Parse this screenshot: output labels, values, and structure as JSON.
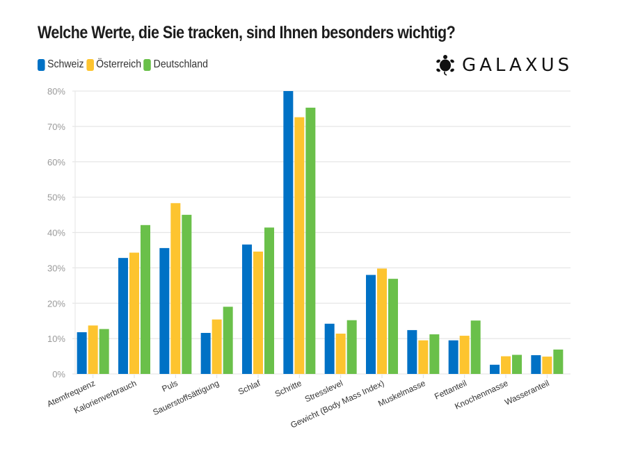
{
  "header": {
    "title": "Welche Werte, die Sie tracken, sind Ihnen besonders wichtig?",
    "brand": "GALAXUS",
    "brand_icon": "turtle-icon"
  },
  "colors": {
    "Schweiz": "#0071c5",
    "Österreich": "#fdc42f",
    "Deutschland": "#6ac04a",
    "grid": "#e6e6e6",
    "axis_text": "#9a9a9a"
  },
  "chart_data": {
    "type": "bar",
    "title": "Welche Werte, die Sie tracken, sind Ihnen besonders wichtig?",
    "xlabel": "",
    "ylabel": "",
    "ylim": [
      0,
      80
    ],
    "yticks": [
      "0%",
      "10%",
      "20%",
      "30%",
      "40%",
      "50%",
      "60%",
      "70%",
      "80%"
    ],
    "grid": true,
    "legend_position": "top-left",
    "categories": [
      "Atemfrequenz",
      "Kalorienverbrauch",
      "Puls",
      "Sauerstoffsättigung",
      "Schlaf",
      "Schritte",
      "Stresslevel",
      "Gewicht (Body Mass Index)",
      "Muskelmasse",
      "Fettanteil",
      "Knochenmasse",
      "Wasseranteil"
    ],
    "series": [
      {
        "name": "Schweiz",
        "values": [
          11.8,
          32.8,
          35.6,
          11.6,
          36.6,
          80.0,
          14.2,
          28.0,
          12.4,
          9.5,
          2.6,
          5.3
        ]
      },
      {
        "name": "Österreich",
        "values": [
          13.7,
          34.3,
          48.3,
          15.4,
          34.6,
          72.6,
          11.4,
          29.8,
          9.5,
          10.8,
          5.0,
          4.9
        ]
      },
      {
        "name": "Deutschland",
        "values": [
          12.7,
          42.1,
          45.0,
          19.0,
          41.4,
          75.3,
          15.2,
          26.9,
          11.2,
          15.1,
          5.4,
          6.9
        ]
      }
    ]
  }
}
